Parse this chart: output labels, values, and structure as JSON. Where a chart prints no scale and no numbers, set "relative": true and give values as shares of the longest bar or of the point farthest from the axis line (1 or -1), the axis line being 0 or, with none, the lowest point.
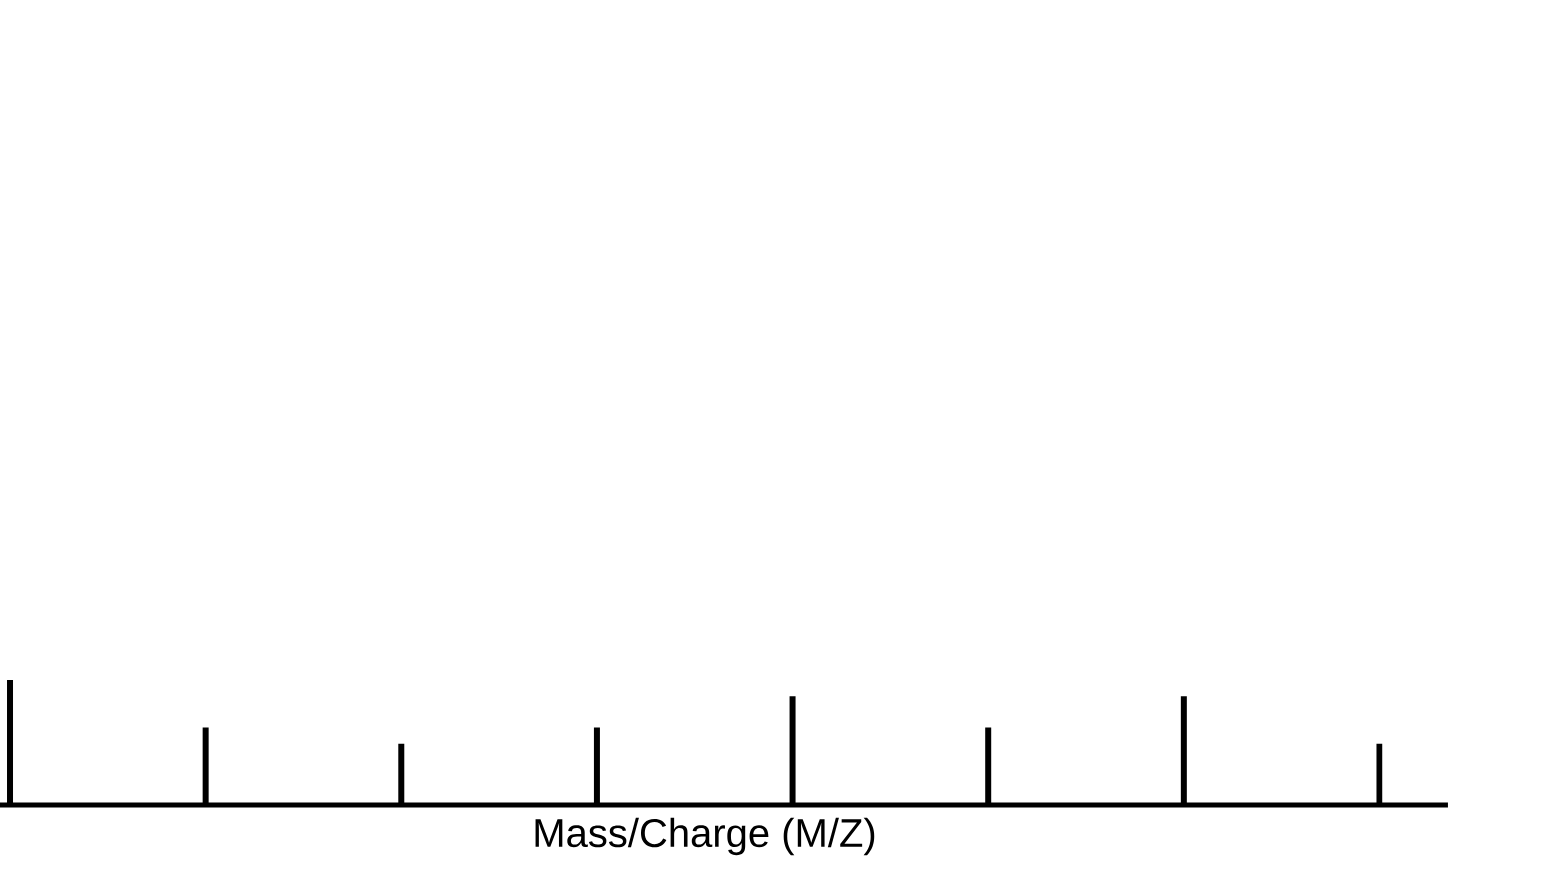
{
  "chart_data": {
    "type": "bar",
    "xlabel": "Mass/Charge (M/Z)",
    "relative": true,
    "categories": [
      null,
      null,
      null,
      null,
      null,
      null,
      null,
      null
    ],
    "values": [
      1,
      0.62,
      0.49,
      0.62,
      0.87,
      0.62,
      0.87,
      0.49
    ],
    "color": "#000000"
  }
}
